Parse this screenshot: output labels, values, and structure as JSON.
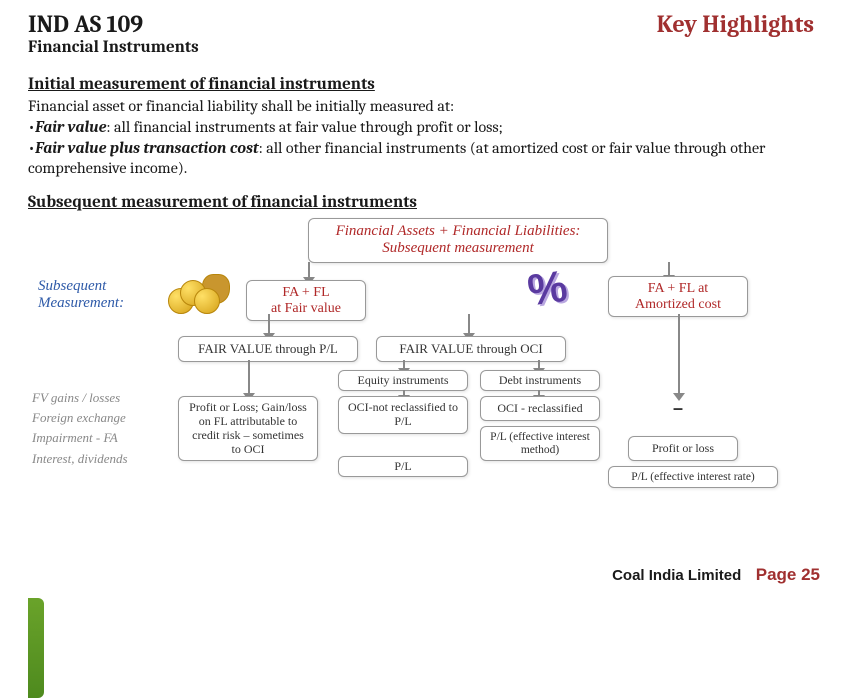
{
  "header": {
    "title": "IND AS 109",
    "subtitle": "Financial Instruments",
    "right": "Key Highlights"
  },
  "section1": {
    "heading": "Initial measurement of financial instruments",
    "intro": "Financial asset or financial liability shall be initially measured at:",
    "bullet1_emph": "Fair value",
    "bullet1_rest": ": all financial instruments at fair value through profit or loss;",
    "bullet2_emph": "Fair value plus transaction cost",
    "bullet2_rest": ": all other financial instruments (at amortized cost or fair value through other comprehensive income)."
  },
  "section2": {
    "heading": "Subsequent measurement of financial instruments"
  },
  "diagram": {
    "header_line1": "Financial Assets + Financial Liabilities:",
    "header_line2": "Subsequent measurement",
    "subseq_label": "Subsequent Measurement:",
    "fairvalue_box": "FA + FL\nat Fair value",
    "amort_box": "FA + FL at\nAmortized cost",
    "fv_pl": "FAIR VALUE through P/L",
    "fv_oci": "FAIR VALUE through OCI",
    "equity": "Equity instruments",
    "debt": "Debt instruments",
    "sidebar": "FV gains / losses\nForeign exchange\nImpairment - FA\nInterest, dividends",
    "pl_detail": "Profit or Loss; Gain/loss on FL attributable to credit risk – sometimes to OCI",
    "oci_notreclass": "OCI-not reclassified to P/L",
    "oci_reclass": "OCI - reclassified",
    "pl_eff": "P/L (effective interest method)",
    "pl_only": "P/L",
    "amort_pl": "Profit or loss",
    "amort_eff": "P/L (effective interest rate)",
    "dash": "–"
  },
  "footer": {
    "company": "Coal India Limited",
    "page": "Page 25"
  },
  "colors": {
    "accent_red": "#a03030",
    "blue": "#2e5aa8",
    "grey": "#888888"
  }
}
